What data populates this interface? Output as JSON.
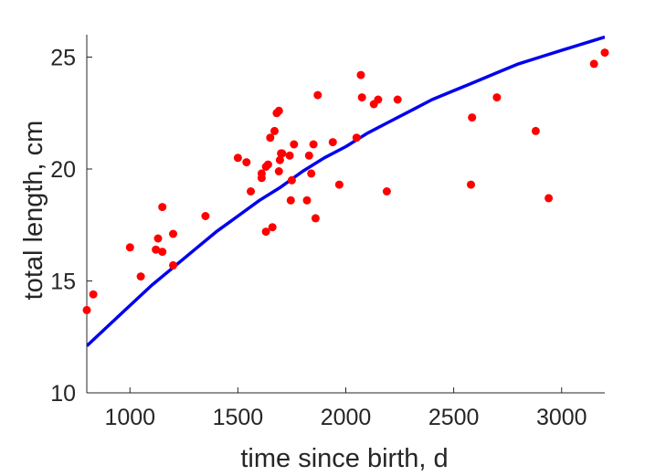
{
  "chart_data": {
    "type": "scatter",
    "title": "",
    "xlabel": "time since birth, d",
    "ylabel": "total length, cm",
    "xlim": [
      800,
      3200
    ],
    "ylim": [
      10,
      26
    ],
    "x_ticks": [
      1000,
      1500,
      2000,
      2500,
      3000
    ],
    "y_ticks": [
      10,
      15,
      20,
      25
    ],
    "grid": false,
    "legend": "none",
    "colors": {
      "points": "#ff0000",
      "curve": "#0000ee",
      "axis": "#262626"
    },
    "series": [
      {
        "kind": "points",
        "x": [
          800,
          830,
          1000,
          1050,
          1120,
          1130,
          1150,
          1150,
          1200,
          1200,
          1350,
          1500,
          1540,
          1560,
          1610,
          1610,
          1630,
          1630,
          1640,
          1650,
          1660,
          1670,
          1680,
          1690,
          1690,
          1695,
          1700,
          1705,
          1740,
          1745,
          1750,
          1760,
          1820,
          1830,
          1840,
          1850,
          1860,
          1870,
          1940,
          1970,
          2050,
          2070,
          2075,
          2130,
          2150,
          2190,
          2240,
          2580,
          2585,
          2700,
          2880,
          2940,
          3150,
          3200
        ],
        "y": [
          13.7,
          14.4,
          16.5,
          15.2,
          16.4,
          16.9,
          16.3,
          18.3,
          17.1,
          15.7,
          17.9,
          20.5,
          20.3,
          19.0,
          19.6,
          19.8,
          17.2,
          20.1,
          20.2,
          21.4,
          17.4,
          21.7,
          22.5,
          22.6,
          19.9,
          20.4,
          20.7,
          20.7,
          20.6,
          18.6,
          19.5,
          21.1,
          18.6,
          20.6,
          19.8,
          21.1,
          17.8,
          23.3,
          21.2,
          19.3,
          21.4,
          24.2,
          23.2,
          22.9,
          23.1,
          19.0,
          23.1,
          19.3,
          22.3,
          23.2,
          21.7,
          18.7,
          24.7,
          25.2
        ]
      },
      {
        "kind": "curve",
        "x": [
          800,
          900,
          1000,
          1100,
          1200,
          1300,
          1400,
          1500,
          1600,
          1700,
          1800,
          1900,
          2000,
          2100,
          2200,
          2300,
          2400,
          2500,
          2600,
          2700,
          2800,
          2900,
          3000,
          3100,
          3200
        ],
        "y": [
          12.1,
          13.0,
          13.9,
          14.8,
          15.6,
          16.4,
          17.2,
          17.9,
          18.6,
          19.2,
          19.9,
          20.5,
          21.0,
          21.6,
          22.1,
          22.6,
          23.1,
          23.5,
          23.9,
          24.3,
          24.7,
          25.0,
          25.3,
          25.6,
          25.9
        ]
      }
    ]
  }
}
